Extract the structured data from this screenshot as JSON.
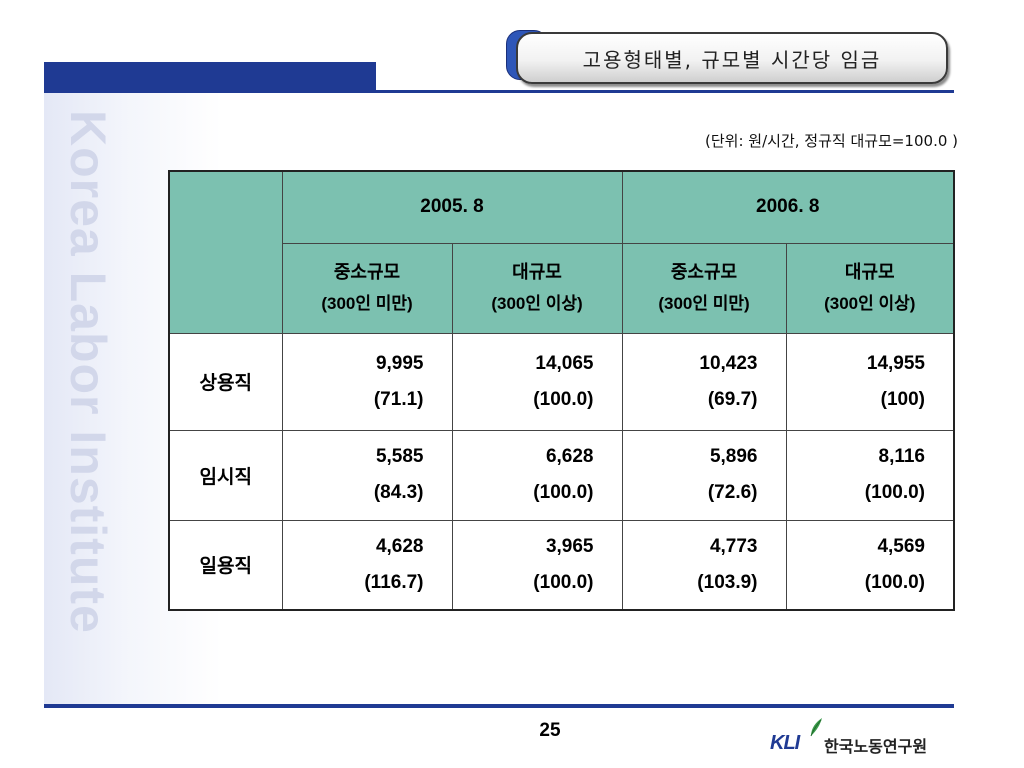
{
  "title": "고용형태별, 규모별 시간당 임금",
  "side_watermark": "Korea Labor Institute",
  "unit_note": "(단위: 원/시간, 정규직 대규모=100.0 )",
  "table": {
    "years": [
      "2005. 8",
      "2006. 8"
    ],
    "sizes": [
      {
        "name": "중소규모",
        "range": "(300인 미만)"
      },
      {
        "name": "대규모",
        "range": "(300인 이상)"
      },
      {
        "name": "중소규모",
        "range": "(300인 미만)"
      },
      {
        "name": "대규모",
        "range": "(300인 이상)"
      }
    ],
    "rows": [
      {
        "label": "상용직",
        "cells": [
          {
            "value": "9,995",
            "index": "(71.1)"
          },
          {
            "value": "14,065",
            "index": "(100.0)"
          },
          {
            "value": "10,423",
            "index": "(69.7)"
          },
          {
            "value": "14,955",
            "index": "(100)"
          }
        ]
      },
      {
        "label": "임시직",
        "cells": [
          {
            "value": "5,585",
            "index": "(84.3)"
          },
          {
            "value": "6,628",
            "index": "(100.0)"
          },
          {
            "value": "5,896",
            "index": "(72.6)"
          },
          {
            "value": "8,116",
            "index": "(100.0)"
          }
        ]
      },
      {
        "label": "일용직",
        "cells": [
          {
            "value": "4,628",
            "index": "(116.7)"
          },
          {
            "value": "3,965",
            "index": "(100.0)"
          },
          {
            "value": "4,773",
            "index": "(103.9)"
          },
          {
            "value": "4,569",
            "index": "(100.0)"
          }
        ]
      }
    ]
  },
  "page_number": "25",
  "logo": {
    "abbr": "KLI",
    "name": "한국노동연구원"
  },
  "colors": {
    "accent": "#1f3a93",
    "header": "#7cc1b0"
  }
}
